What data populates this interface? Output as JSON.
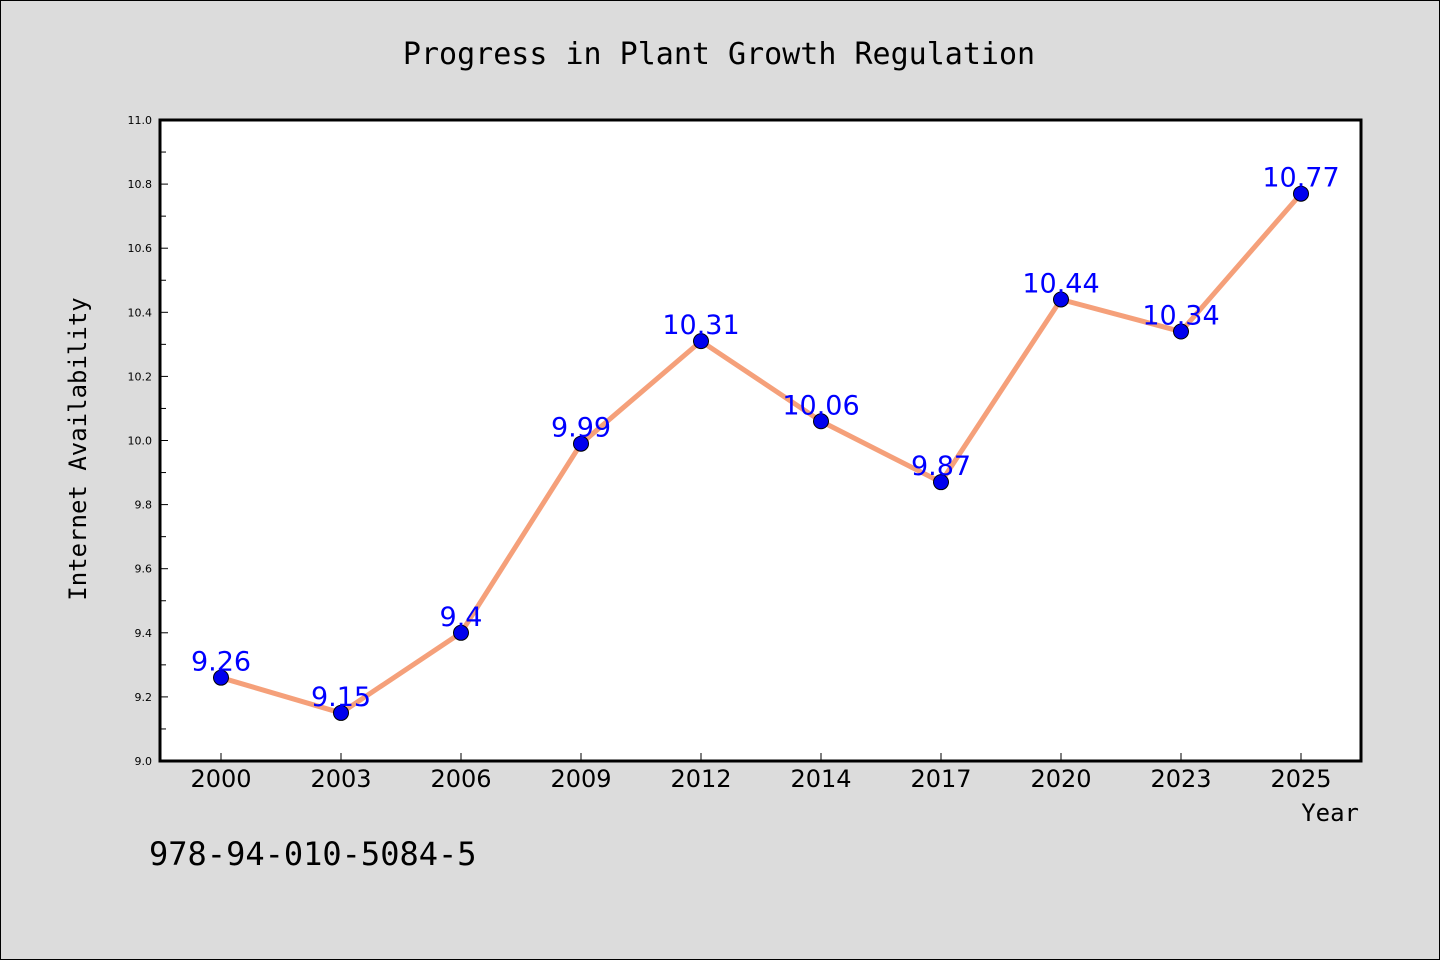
{
  "chart_data": {
    "type": "line",
    "title": "Progress in Plant Growth Regulation",
    "xlabel": "Year",
    "ylabel": "Internet Availability",
    "categories": [
      "2000",
      "2003",
      "2006",
      "2009",
      "2012",
      "2014",
      "2017",
      "2020",
      "2023",
      "2025"
    ],
    "values": [
      9.26,
      9.15,
      9.4,
      9.99,
      10.31,
      10.06,
      9.87,
      10.44,
      10.34,
      10.77
    ],
    "data_labels": [
      "9.26",
      "9.15",
      "9.4",
      "9.99",
      "10.31",
      "10.06",
      "9.87",
      "10.44",
      "10.34",
      "10.77"
    ],
    "ylim": [
      9.0,
      11.0
    ],
    "yticks": [
      9.0,
      9.2,
      9.4,
      9.6,
      9.8,
      10.0,
      10.2,
      10.4,
      10.6,
      10.8,
      11.0
    ],
    "ytick_labels": [
      "9.0",
      "9.2",
      "9.4",
      "9.6",
      "9.8",
      "10.0",
      "10.2",
      "10.4",
      "10.6",
      "10.8",
      "11.0"
    ],
    "grid": false,
    "legend": "none",
    "line_color": "#f5a07a",
    "marker_color": "#0000ee",
    "label_color": "#0000ff"
  },
  "annotation": "978-94-010-5084-5"
}
